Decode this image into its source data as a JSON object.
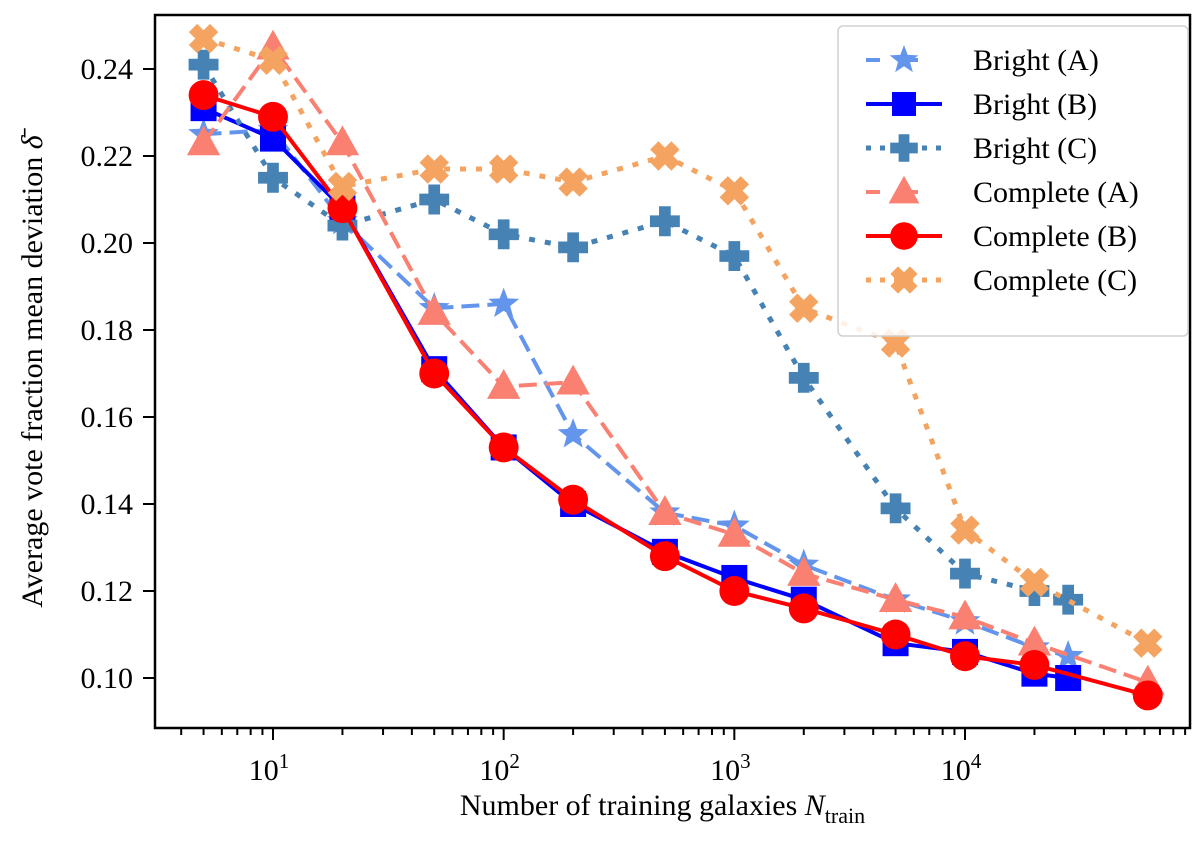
{
  "chart_data": {
    "type": "line",
    "title": "",
    "xlabel": "Number of training galaxies",
    "xlabel_math": "N",
    "xlabel_sub": "train",
    "ylabel": "Average vote fraction mean deviation",
    "ylabel_symbol": "δ̄",
    "xscale": "log",
    "xlim": [
      3.6,
      90000
    ],
    "ylim": [
      0.092,
      0.255
    ],
    "x_ticks": [
      {
        "value": 10,
        "base": "10",
        "exp": "1"
      },
      {
        "value": 100,
        "base": "10",
        "exp": "2"
      },
      {
        "value": 1000,
        "base": "10",
        "exp": "3"
      },
      {
        "value": 10000,
        "base": "10",
        "exp": "4"
      }
    ],
    "y_ticks": [
      0.1,
      0.12,
      0.14,
      0.16,
      0.18,
      0.2,
      0.22,
      0.24
    ],
    "y_tick_labels": [
      "0.10",
      "0.12",
      "0.14",
      "0.16",
      "0.18",
      "0.20",
      "0.22",
      "0.24"
    ],
    "grid": false,
    "legend_position": "top-right",
    "series": [
      {
        "name": "Bright (A)",
        "color": "#6495ed",
        "linestyle": "dashed",
        "marker": "star",
        "x": [
          5,
          10,
          20,
          50,
          100,
          200,
          500,
          1000,
          2000,
          5000,
          10000,
          20000,
          28000
        ],
        "values": [
          0.225,
          0.226,
          0.205,
          0.185,
          0.186,
          0.156,
          0.138,
          0.135,
          0.126,
          0.118,
          0.113,
          0.107,
          0.105
        ]
      },
      {
        "name": "Bright (B)",
        "color": "#0000ff",
        "linestyle": "solid",
        "marker": "square",
        "x": [
          5,
          10,
          20,
          50,
          100,
          200,
          500,
          1000,
          2000,
          5000,
          10000,
          20000,
          28000
        ],
        "values": [
          0.231,
          0.224,
          0.208,
          0.171,
          0.153,
          0.14,
          0.129,
          0.123,
          0.118,
          0.108,
          0.106,
          0.101,
          0.1
        ]
      },
      {
        "name": "Bright (C)",
        "color": "#4682b4",
        "linestyle": "dotted",
        "marker": "plus",
        "x": [
          5,
          10,
          20,
          50,
          100,
          200,
          500,
          1000,
          2000,
          5000,
          10000,
          20000,
          28000
        ],
        "values": [
          0.241,
          0.215,
          0.204,
          0.21,
          0.202,
          0.199,
          0.205,
          0.197,
          0.169,
          0.139,
          0.124,
          0.12,
          0.118
        ]
      },
      {
        "name": "Complete (A)",
        "color": "#fa8072",
        "linestyle": "dashed",
        "marker": "triangle",
        "x": [
          5,
          10,
          20,
          50,
          100,
          200,
          500,
          1000,
          2000,
          5000,
          10000,
          20000,
          62000
        ],
        "values": [
          0.223,
          0.245,
          0.223,
          0.184,
          0.167,
          0.168,
          0.138,
          0.133,
          0.124,
          0.118,
          0.114,
          0.108,
          0.099
        ]
      },
      {
        "name": "Complete (B)",
        "color": "#ff0000",
        "linestyle": "solid",
        "marker": "circle",
        "x": [
          5,
          10,
          20,
          50,
          100,
          200,
          500,
          1000,
          2000,
          5000,
          10000,
          20000,
          62000
        ],
        "values": [
          0.234,
          0.229,
          0.208,
          0.17,
          0.153,
          0.141,
          0.128,
          0.12,
          0.116,
          0.11,
          0.105,
          0.103,
          0.096
        ]
      },
      {
        "name": "Complete (C)",
        "color": "#f4a460",
        "linestyle": "dotted",
        "marker": "x",
        "x": [
          5,
          10,
          20,
          50,
          100,
          200,
          500,
          1000,
          2000,
          5000,
          10000,
          20000,
          62000
        ],
        "values": [
          0.247,
          0.242,
          0.213,
          0.217,
          0.217,
          0.214,
          0.22,
          0.212,
          0.185,
          0.177,
          0.134,
          0.122,
          0.108
        ]
      }
    ]
  }
}
